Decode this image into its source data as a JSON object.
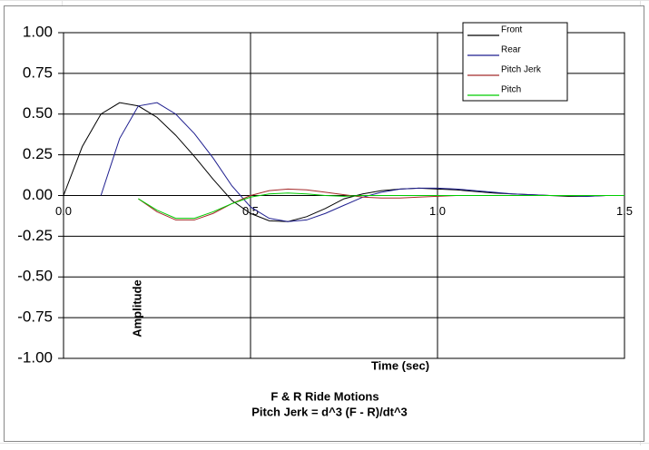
{
  "chart_data": {
    "type": "line",
    "title": "F & R Ride Motions",
    "subtitle": "Pitch Jerk = d^3 (F - R)/dt^3",
    "x_label": "Time (sec)",
    "y_label": "Amplitude",
    "x": [
      0,
      0.05,
      0.1,
      0.15,
      0.2,
      0.25,
      0.3,
      0.35,
      0.4,
      0.45,
      0.5,
      0.55,
      0.6,
      0.65,
      0.7,
      0.75,
      0.8,
      0.85,
      0.9,
      0.95,
      1.0,
      1.05,
      1.1,
      1.15,
      1.2,
      1.25,
      1.3,
      1.35,
      1.4,
      1.45,
      1.5
    ],
    "series": [
      {
        "name": "Front",
        "color": "#000000",
        "values": [
          0,
          0.3,
          0.5,
          0.57,
          0.55,
          0.48,
          0.37,
          0.24,
          0.1,
          -0.03,
          -0.11,
          -0.155,
          -0.16,
          -0.13,
          -0.08,
          -0.02,
          0.01,
          0.03,
          0.04,
          0.045,
          0.04,
          0.035,
          0.025,
          0.015,
          0.01,
          0.005,
          0,
          -0.005,
          -0.005,
          0,
          0
        ]
      },
      {
        "name": "Rear",
        "color": "#1f1f8f",
        "values": [
          null,
          null,
          0,
          0.35,
          0.55,
          0.57,
          0.5,
          0.38,
          0.23,
          0.06,
          -0.07,
          -0.14,
          -0.16,
          -0.15,
          -0.11,
          -0.06,
          -0.01,
          0.02,
          0.04,
          0.045,
          0.045,
          0.04,
          0.03,
          0.02,
          0.01,
          0.005,
          0,
          0,
          -0.005,
          0,
          0
        ]
      },
      {
        "name": "Pitch Jerk",
        "color": "#a52a2a",
        "values": [
          null,
          null,
          null,
          null,
          -0.02,
          -0.1,
          -0.15,
          -0.15,
          -0.11,
          -0.05,
          0,
          0.03,
          0.04,
          0.035,
          0.02,
          0.005,
          -0.01,
          -0.015,
          -0.015,
          -0.01,
          -0.005,
          0,
          0,
          0,
          0,
          0,
          0,
          0,
          0,
          0,
          0
        ]
      },
      {
        "name": "Pitch",
        "color": "#00cc00",
        "values": [
          null,
          null,
          null,
          null,
          -0.02,
          -0.09,
          -0.14,
          -0.14,
          -0.1,
          -0.05,
          -0.01,
          0.01,
          0.015,
          0.01,
          0,
          -0.005,
          0,
          0,
          0,
          0,
          0,
          0,
          0,
          0,
          0,
          0,
          0,
          0,
          0,
          0,
          0
        ]
      }
    ],
    "xlim": [
      0,
      1.5
    ],
    "xticks": [
      {
        "value": 0,
        "label": "0.0"
      },
      {
        "value": 0.5,
        "label": "0.5"
      },
      {
        "value": 1.0,
        "label": "1.0"
      },
      {
        "value": 1.5,
        "label": "1.5"
      }
    ],
    "ylim": [
      -1,
      1
    ],
    "yticks": [
      {
        "value": -1,
        "label": "-1.00"
      },
      {
        "value": -0.75,
        "label": "-0.75"
      },
      {
        "value": -0.5,
        "label": "-0.50"
      },
      {
        "value": -0.25,
        "label": "-0.25"
      },
      {
        "value": 0,
        "label": "0.00"
      },
      {
        "value": 0.25,
        "label": "0.25"
      },
      {
        "value": 0.5,
        "label": "0.50"
      },
      {
        "value": 0.75,
        "label": "0.75"
      },
      {
        "value": 1,
        "label": "1.00"
      }
    ],
    "grid": true,
    "legend": "top-right"
  }
}
